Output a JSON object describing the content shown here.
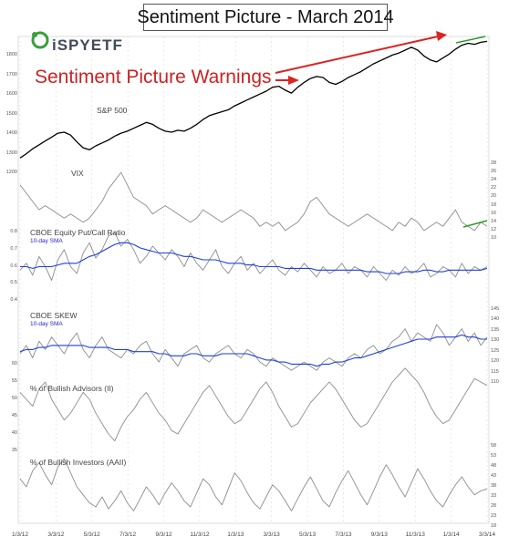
{
  "title": "Sentiment Picture - March 2014",
  "logo_text": "iSPYETF",
  "annotation": "Sentiment Picture Warnings",
  "colors": {
    "price": "#000000",
    "indicator": "#8c8c8c",
    "sma": "#1f3fe0",
    "warning_arrow": "#dd2222",
    "trend_line": "#2a9a2a",
    "grid": "#cccccc"
  },
  "x_axis_labels": [
    "1/3/12",
    "3/3/12",
    "5/3/12",
    "7/3/12",
    "9/3/12",
    "11/3/12",
    "1/3/13",
    "3/3/13",
    "5/3/13",
    "7/3/13",
    "9/3/13",
    "11/3/13",
    "1/3/14",
    "3/3/14"
  ],
  "chart_data": [
    {
      "type": "line",
      "title": "S&P 500",
      "series": [
        {
          "values": [
            1278,
            1300,
            1325,
            1345,
            1365,
            1385,
            1405,
            1410,
            1395,
            1360,
            1330,
            1320,
            1340,
            1355,
            1370,
            1390,
            1405,
            1415,
            1430,
            1445,
            1460,
            1450,
            1430,
            1415,
            1410,
            1420,
            1415,
            1430,
            1450,
            1475,
            1495,
            1505,
            1515,
            1525,
            1545,
            1560,
            1575,
            1590,
            1605,
            1620,
            1640,
            1645,
            1625,
            1610,
            1640,
            1665,
            1685,
            1695,
            1690,
            1665,
            1655,
            1670,
            1690,
            1705,
            1720,
            1740,
            1760,
            1775,
            1790,
            1805,
            1815,
            1830,
            1845,
            1830,
            1800,
            1780,
            1770,
            1790,
            1810,
            1835,
            1855,
            1865,
            1860,
            1870,
            1875
          ]
        }
      ],
      "ylim": [
        1200,
        1900
      ],
      "yticks": [
        1200,
        1300,
        1400,
        1500,
        1600,
        1700,
        1800
      ],
      "annotations": [
        "Sentiment Picture Warnings"
      ]
    },
    {
      "type": "line",
      "title": "VIX",
      "series": [
        {
          "values": [
            23,
            21,
            19,
            17,
            18,
            17,
            16,
            15,
            16,
            15,
            14,
            15,
            17,
            19,
            22,
            24,
            26,
            23,
            20,
            19,
            18,
            16,
            17,
            18,
            17,
            16,
            15,
            14,
            15,
            17,
            16,
            15,
            14,
            15,
            16,
            17,
            16,
            15,
            13,
            14,
            13,
            14,
            12,
            13,
            14,
            16,
            19,
            20,
            18,
            16,
            15,
            14,
            13,
            14,
            15,
            16,
            15,
            14,
            13,
            12,
            14,
            13,
            15,
            14,
            12,
            13,
            14,
            13,
            15,
            17,
            14,
            13,
            12,
            14,
            13
          ]
        }
      ],
      "ylim": [
        10,
        28
      ],
      "yticks": [
        10,
        12,
        14,
        16,
        18,
        20,
        22,
        24,
        26,
        28
      ]
    },
    {
      "type": "line",
      "title": "CBOE Equity Put/Call Ratio",
      "series": [
        {
          "values": [
            0.58,
            0.62,
            0.55,
            0.66,
            0.6,
            0.52,
            0.64,
            0.7,
            0.6,
            0.56,
            0.68,
            0.74,
            0.65,
            0.7,
            0.78,
            0.8,
            0.72,
            0.76,
            0.7,
            0.62,
            0.66,
            0.72,
            0.68,
            0.64,
            0.7,
            0.66,
            0.6,
            0.68,
            0.62,
            0.58,
            0.64,
            0.7,
            0.6,
            0.56,
            0.62,
            0.66,
            0.58,
            0.62,
            0.56,
            0.6,
            0.64,
            0.58,
            0.55,
            0.6,
            0.57,
            0.62,
            0.58,
            0.54,
            0.6,
            0.56,
            0.58,
            0.62,
            0.56,
            0.6,
            0.58,
            0.54,
            0.6,
            0.56,
            0.52,
            0.58,
            0.55,
            0.6,
            0.56,
            0.58,
            0.62,
            0.54,
            0.56,
            0.6,
            0.58,
            0.54,
            0.62,
            0.56,
            0.6,
            0.58,
            0.6
          ]
        },
        {
          "name": "10-day SMA",
          "values": [
            0.6,
            0.6,
            0.59,
            0.6,
            0.6,
            0.6,
            0.61,
            0.62,
            0.62,
            0.62,
            0.64,
            0.66,
            0.67,
            0.69,
            0.71,
            0.73,
            0.74,
            0.74,
            0.73,
            0.71,
            0.7,
            0.69,
            0.68,
            0.68,
            0.68,
            0.67,
            0.66,
            0.66,
            0.65,
            0.64,
            0.64,
            0.64,
            0.63,
            0.62,
            0.62,
            0.62,
            0.61,
            0.61,
            0.6,
            0.6,
            0.6,
            0.6,
            0.59,
            0.59,
            0.59,
            0.59,
            0.59,
            0.58,
            0.58,
            0.58,
            0.58,
            0.58,
            0.58,
            0.58,
            0.58,
            0.57,
            0.57,
            0.57,
            0.56,
            0.56,
            0.56,
            0.57,
            0.57,
            0.57,
            0.58,
            0.58,
            0.57,
            0.57,
            0.58,
            0.58,
            0.58,
            0.58,
            0.58,
            0.58,
            0.59
          ]
        }
      ],
      "ylim": [
        0.4,
        0.8
      ],
      "yticks": [
        0.4,
        0.5,
        0.6,
        0.7,
        0.8
      ]
    },
    {
      "type": "line",
      "title": "CBOE SKEW",
      "series": [
        {
          "values": [
            124,
            128,
            122,
            130,
            126,
            132,
            128,
            124,
            130,
            134,
            126,
            122,
            128,
            132,
            126,
            124,
            122,
            126,
            124,
            128,
            130,
            124,
            120,
            126,
            122,
            118,
            124,
            126,
            128,
            122,
            120,
            124,
            126,
            128,
            124,
            122,
            126,
            124,
            120,
            118,
            122,
            120,
            118,
            116,
            118,
            120,
            118,
            116,
            120,
            122,
            120,
            118,
            122,
            124,
            122,
            126,
            128,
            124,
            126,
            130,
            132,
            136,
            130,
            134,
            132,
            130,
            138,
            134,
            128,
            132,
            136,
            130,
            134,
            128,
            132
          ]
        },
        {
          "name": "10-day SMA",
          "values": [
            125,
            126,
            126,
            127,
            127,
            128,
            128,
            128,
            128,
            128,
            128,
            127,
            127,
            127,
            127,
            126,
            126,
            126,
            125,
            125,
            125,
            125,
            124,
            124,
            123,
            123,
            123,
            124,
            124,
            123,
            123,
            123,
            124,
            124,
            124,
            124,
            124,
            123,
            122,
            121,
            121,
            120,
            120,
            119,
            119,
            119,
            119,
            118,
            119,
            119,
            120,
            120,
            121,
            122,
            122,
            123,
            124,
            125,
            126,
            127,
            128,
            129,
            130,
            131,
            131,
            131,
            132,
            132,
            132,
            132,
            133,
            132,
            132,
            131,
            131
          ]
        }
      ],
      "ylim": [
        110,
        145
      ],
      "yticks": [
        110,
        115,
        120,
        125,
        130,
        135,
        140,
        145
      ]
    },
    {
      "type": "line",
      "title": "% of Bullish Advisors (II)",
      "series": [
        {
          "values": [
            52,
            50,
            48,
            53,
            55,
            50,
            47,
            44,
            46,
            49,
            52,
            50,
            46,
            43,
            40,
            38,
            42,
            45,
            47,
            50,
            52,
            49,
            46,
            44,
            41,
            40,
            43,
            46,
            49,
            52,
            54,
            51,
            48,
            45,
            43,
            44,
            47,
            50,
            53,
            55,
            52,
            48,
            45,
            42,
            43,
            46,
            49,
            51,
            53,
            55,
            53,
            50,
            47,
            44,
            42,
            43,
            46,
            49,
            52,
            55,
            57,
            59,
            57,
            55,
            52,
            48,
            45,
            43,
            44,
            47,
            50,
            53,
            56,
            55,
            54
          ]
        }
      ],
      "ylim": [
        35,
        60
      ],
      "yticks": [
        35,
        40,
        45,
        50,
        55,
        60
      ]
    },
    {
      "type": "line",
      "title": "% of Bullish Investors (AAII)",
      "series": [
        {
          "values": [
            42,
            38,
            46,
            50,
            44,
            39,
            48,
            52,
            45,
            38,
            34,
            30,
            28,
            33,
            27,
            31,
            36,
            30,
            26,
            32,
            38,
            34,
            29,
            35,
            40,
            36,
            31,
            28,
            35,
            42,
            39,
            33,
            29,
            37,
            45,
            41,
            35,
            30,
            27,
            33,
            39,
            36,
            31,
            26,
            32,
            38,
            43,
            37,
            31,
            28,
            35,
            41,
            46,
            40,
            34,
            29,
            36,
            43,
            49,
            44,
            38,
            33,
            40,
            47,
            42,
            36,
            31,
            28,
            34,
            39,
            43,
            38,
            34,
            36,
            37
          ]
        }
      ],
      "ylim": [
        18,
        58
      ],
      "yticks": [
        18,
        23,
        28,
        33,
        38,
        43,
        48,
        53,
        58
      ]
    }
  ]
}
